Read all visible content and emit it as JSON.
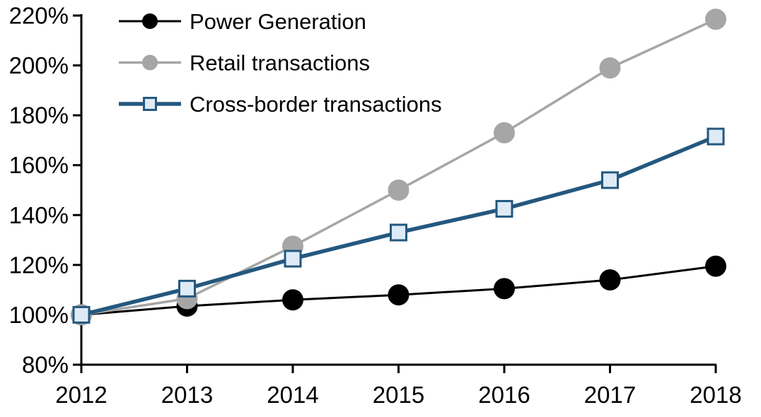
{
  "chart_data": {
    "type": "line",
    "title": "",
    "xlabel": "",
    "ylabel": "",
    "grid": false,
    "legend_position": "top-left-inside",
    "categories": [
      "2012",
      "2013",
      "2014",
      "2015",
      "2016",
      "2017",
      "2018"
    ],
    "ylim": [
      80,
      220
    ],
    "ytick_step": 20,
    "yticks": [
      {
        "value": 80,
        "label": "80%"
      },
      {
        "value": 100,
        "label": "100%"
      },
      {
        "value": 120,
        "label": "120%"
      },
      {
        "value": 140,
        "label": "140%"
      },
      {
        "value": 160,
        "label": "160%"
      },
      {
        "value": 180,
        "label": "180%"
      },
      {
        "value": 200,
        "label": "200%"
      },
      {
        "value": 220,
        "label": "220%"
      }
    ],
    "series": [
      {
        "name": "Power Generation",
        "marker": "circle",
        "color": "#000000",
        "marker_fill": "#000000",
        "line_width": 3,
        "values": [
          100,
          103.5,
          106,
          108,
          110.5,
          114,
          119.5
        ]
      },
      {
        "name": "Retail transactions",
        "marker": "circle",
        "color": "#a6a6a6",
        "marker_fill": "#a6a6a6",
        "line_width": 3.5,
        "values": [
          100,
          106.5,
          127.5,
          150,
          173,
          199,
          218.5
        ]
      },
      {
        "name": "Cross-border transactions",
        "marker": "square",
        "color": "#24587f",
        "marker_fill": "#deebf7",
        "line_width": 5.5,
        "values": [
          100,
          110.5,
          122.5,
          133,
          142.5,
          154,
          171.5
        ]
      }
    ],
    "axis_color": "#000000"
  }
}
